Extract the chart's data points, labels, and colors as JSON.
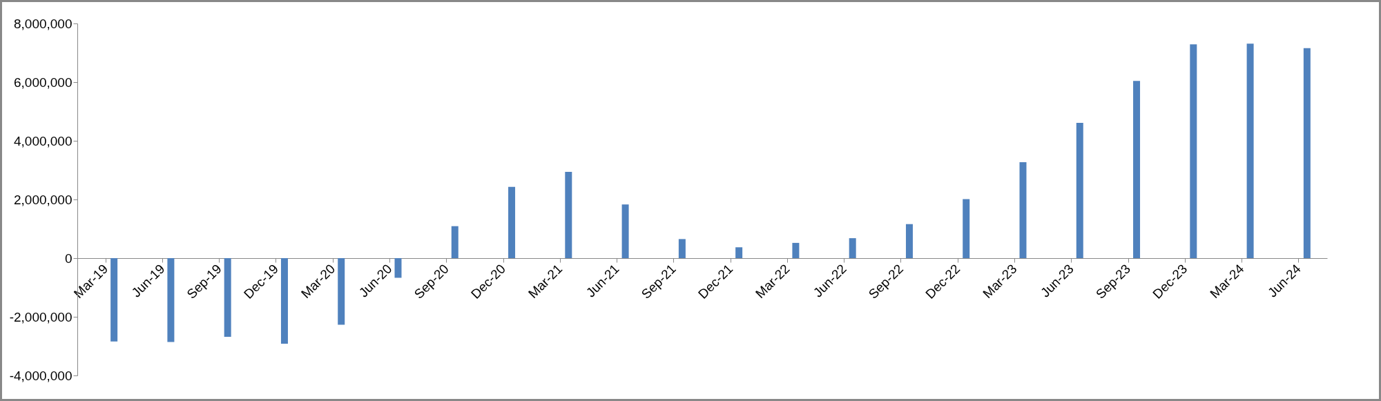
{
  "chart_data": {
    "type": "bar",
    "categories": [
      "Mar-19",
      "Jun-19",
      "Sep-19",
      "Dec-19",
      "Mar-20",
      "Jun-20",
      "Sep-20",
      "Dec-20",
      "Mar-21",
      "Jun-21",
      "Sep-21",
      "Dec-21",
      "Mar-22",
      "Jun-22",
      "Sep-22",
      "Dec-22",
      "Mar-23",
      "Jun-23",
      "Sep-23",
      "Dec-23",
      "Mar-24",
      "Jun-24"
    ],
    "values": [
      -2840000,
      -2860000,
      -2680000,
      -2920000,
      -2270000,
      -670000,
      1090000,
      2430000,
      2940000,
      1830000,
      650000,
      370000,
      520000,
      680000,
      1160000,
      2010000,
      3270000,
      4610000,
      6040000,
      7290000,
      7310000,
      7160000
    ],
    "color": "#4f81bd",
    "ylim": [
      -4000000,
      8000000
    ],
    "yticks": [
      {
        "value": -4000000,
        "label": "-4,000,000"
      },
      {
        "value": -2000000,
        "label": "-2,000,000"
      },
      {
        "value": 0,
        "label": "0"
      },
      {
        "value": 2000000,
        "label": "2,000,000"
      },
      {
        "value": 4000000,
        "label": "4,000,000"
      },
      {
        "value": 6000000,
        "label": "6,000,000"
      },
      {
        "value": 8000000,
        "label": "8,000,000"
      }
    ],
    "grid": false
  }
}
